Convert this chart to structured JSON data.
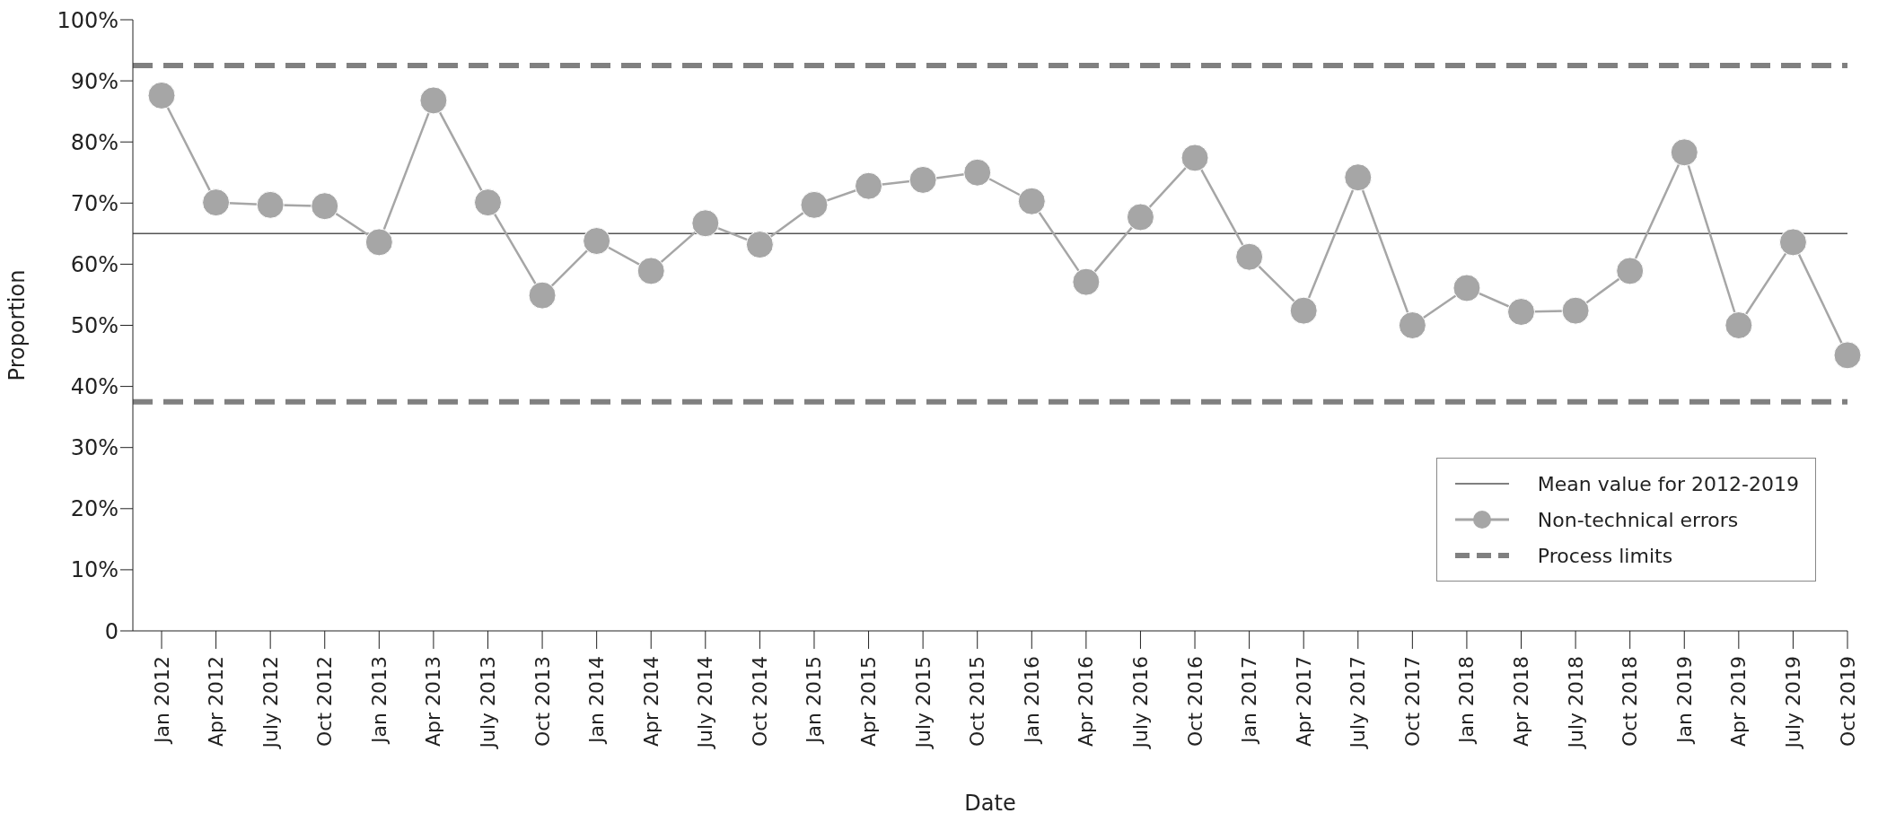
{
  "chart_data": {
    "type": "line",
    "xlabel": "Date",
    "ylabel": "Proportion",
    "categories": [
      "Jan 2012",
      "Apr 2012",
      "July 2012",
      "Oct 2012",
      "Jan 2013",
      "Apr 2013",
      "July 2013",
      "Oct 2013",
      "Jan 2014",
      "Apr 2014",
      "July 2014",
      "Oct 2014",
      "Jan 2015",
      "Apr 2015",
      "July 2015",
      "Oct 2015",
      "Jan 2016",
      "Apr 2016",
      "July 2016",
      "Oct 2016",
      "Jan 2017",
      "Apr 2017",
      "July 2017",
      "Oct 2017",
      "Jan 2018",
      "Apr 2018",
      "July 2018",
      "Oct 2018",
      "Jan 2019",
      "Apr 2019",
      "July 2019",
      "Oct 2019"
    ],
    "series": [
      {
        "name": "Non-technical errors",
        "color": "#a6a6a6",
        "values": [
          87.6,
          70.1,
          69.7,
          69.5,
          63.6,
          86.8,
          70.1,
          54.9,
          63.8,
          58.9,
          66.7,
          63.2,
          69.7,
          72.8,
          73.8,
          75.0,
          70.3,
          57.1,
          67.7,
          77.4,
          61.2,
          52.4,
          74.2,
          50.0,
          56.1,
          52.2,
          52.4,
          58.9,
          78.3,
          50.0,
          63.6,
          45.1
        ]
      }
    ],
    "ylim": [
      0,
      100
    ],
    "yticks": [
      0,
      {
        "value": 10,
        "label": "10%"
      },
      {
        "value": 20,
        "label": "20%"
      },
      {
        "value": 30,
        "label": "30%"
      },
      {
        "value": 40,
        "label": "40%"
      },
      {
        "value": 50,
        "label": "50%"
      },
      {
        "value": 60,
        "label": "60%"
      },
      {
        "value": 70,
        "label": "70%"
      },
      {
        "value": 80,
        "label": "80%"
      },
      {
        "value": 90,
        "label": "90%"
      },
      {
        "value": 100,
        "label": "100%"
      }
    ],
    "ref_lines": [
      {
        "axis": "y",
        "value": 65,
        "label": "Mean value for 2012-2019",
        "color": "#555555",
        "line_style": "solid"
      },
      {
        "axis": "y",
        "value": 92.5,
        "label": "Process limits",
        "color": "#808080",
        "line_style": "dashed"
      },
      {
        "axis": "y",
        "value": 37.5,
        "label": null,
        "color": "#808080",
        "line_style": "dashed"
      }
    ],
    "grid": false,
    "legend": "bottom right",
    "marker": "circle",
    "line_style": "solid"
  }
}
